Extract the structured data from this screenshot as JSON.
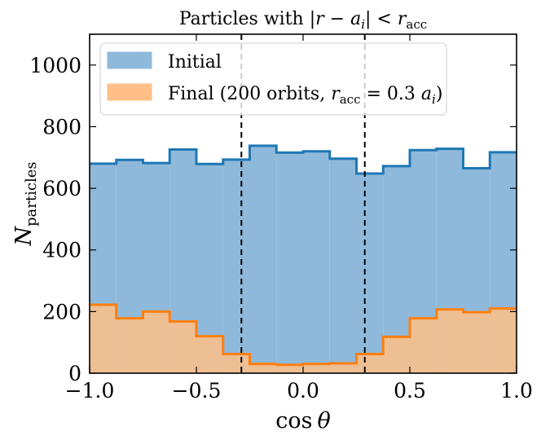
{
  "chart_data": {
    "type": "histogram",
    "title_parts": {
      "prefix": "Particles with |",
      "r": "r",
      "minus": " − ",
      "a": "a",
      "a_sub": "i",
      "mid": "| < ",
      "r2": "r",
      "r2_sub": "acc"
    },
    "xlabel": {
      "main": "cos",
      "var": "θ"
    },
    "ylabel": {
      "main": "N",
      "sub": "particles"
    },
    "xlim": [
      -1.0,
      1.0
    ],
    "ylim": [
      0,
      1100
    ],
    "xticks": [
      -1.0,
      -0.5,
      0.0,
      0.5,
      1.0
    ],
    "xtick_labels": [
      "−1.0",
      "−0.5",
      "0.0",
      "0.5",
      "1.0"
    ],
    "yticks": [
      0,
      200,
      400,
      600,
      800,
      1000
    ],
    "ytick_labels": [
      "0",
      "200",
      "400",
      "600",
      "800",
      "1000"
    ],
    "bin_edges": [
      -1.0,
      -0.875,
      -0.75,
      -0.625,
      -0.5,
      -0.375,
      -0.25,
      -0.125,
      0.0,
      0.125,
      0.25,
      0.375,
      0.5,
      0.625,
      0.75,
      0.875,
      1.0
    ],
    "series": [
      {
        "name": "Initial",
        "legend": {
          "text": "Initial"
        },
        "color": "#1f77b4",
        "fill": "#8fb9da",
        "values": [
          680,
          692,
          682,
          726,
          679,
          693,
          738,
          716,
          720,
          696,
          648,
          672,
          724,
          728,
          665,
          717
        ]
      },
      {
        "name": "Final",
        "legend": {
          "prefix": "Final (200 orbits, ",
          "r": "r",
          "r_sub": "acc",
          "eq": " = 0.3 ",
          "a": "a",
          "a_sub": "i",
          "suffix": ")"
        },
        "color": "#ff7f0e",
        "fill": "#ffbf86",
        "values": [
          222,
          178,
          200,
          168,
          120,
          62,
          30,
          27,
          30,
          32,
          62,
          118,
          178,
          207,
          198,
          210
        ]
      }
    ],
    "vlines": [
      -0.289,
      0.289
    ],
    "grid": false,
    "legend_position": "upper-left"
  }
}
